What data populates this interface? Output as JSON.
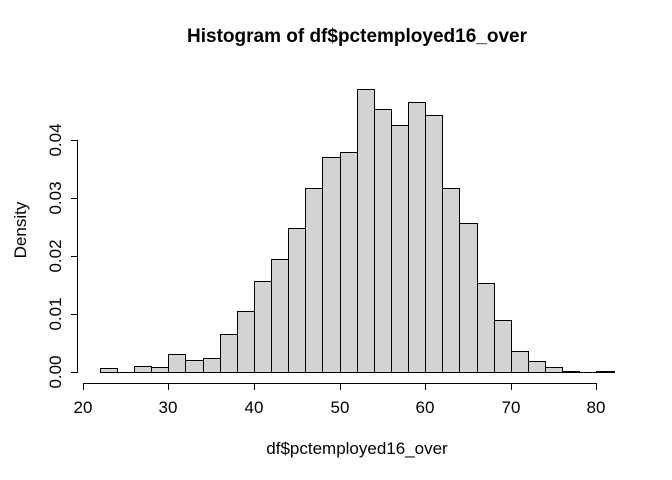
{
  "figure": {
    "background": "#ffffff"
  },
  "chart_data": {
    "type": "bar",
    "subtype": "histogram",
    "title": "Histogram of df$pctemployed16_over",
    "xlabel": "df$pctemployed16_over",
    "ylabel": "Density",
    "grid": false,
    "legend": false,
    "xlim": [
      20,
      82
    ],
    "ylim": [
      0,
      0.049
    ],
    "colors": {
      "bar_fill": "#d3d3d3",
      "bar_border": "#000000",
      "axis": "#000000",
      "text": "#000000"
    },
    "x_axis": {
      "label": "df$pctemployed16_over",
      "ticks": [
        20,
        30,
        40,
        50,
        60,
        70,
        80
      ]
    },
    "y_axis": {
      "label": "Density",
      "ticks": [
        0,
        0.01,
        0.02,
        0.03,
        0.04
      ],
      "tick_labels": [
        "0.00",
        "0.01",
        "0.02",
        "0.03",
        "0.04"
      ]
    },
    "bins": [
      {
        "x0": 22,
        "x1": 24,
        "density": 0.0006
      },
      {
        "x0": 24,
        "x1": 26,
        "density": 0.0
      },
      {
        "x0": 26,
        "x1": 28,
        "density": 0.001
      },
      {
        "x0": 28,
        "x1": 30,
        "density": 0.0008
      },
      {
        "x0": 30,
        "x1": 32,
        "density": 0.003
      },
      {
        "x0": 32,
        "x1": 34,
        "density": 0.002
      },
      {
        "x0": 34,
        "x1": 36,
        "density": 0.0024
      },
      {
        "x0": 36,
        "x1": 38,
        "density": 0.0065
      },
      {
        "x0": 38,
        "x1": 40,
        "density": 0.0105
      },
      {
        "x0": 40,
        "x1": 42,
        "density": 0.0157
      },
      {
        "x0": 42,
        "x1": 44,
        "density": 0.0194
      },
      {
        "x0": 44,
        "x1": 46,
        "density": 0.0248
      },
      {
        "x0": 46,
        "x1": 48,
        "density": 0.0318
      },
      {
        "x0": 48,
        "x1": 50,
        "density": 0.037
      },
      {
        "x0": 50,
        "x1": 52,
        "density": 0.0379
      },
      {
        "x0": 52,
        "x1": 54,
        "density": 0.0488
      },
      {
        "x0": 54,
        "x1": 56,
        "density": 0.0453
      },
      {
        "x0": 56,
        "x1": 58,
        "density": 0.0426
      },
      {
        "x0": 58,
        "x1": 60,
        "density": 0.0466
      },
      {
        "x0": 60,
        "x1": 62,
        "density": 0.0443
      },
      {
        "x0": 62,
        "x1": 64,
        "density": 0.0318
      },
      {
        "x0": 64,
        "x1": 66,
        "density": 0.0257
      },
      {
        "x0": 66,
        "x1": 68,
        "density": 0.0154
      },
      {
        "x0": 68,
        "x1": 70,
        "density": 0.009
      },
      {
        "x0": 70,
        "x1": 72,
        "density": 0.0035
      },
      {
        "x0": 72,
        "x1": 74,
        "density": 0.0018
      },
      {
        "x0": 74,
        "x1": 76,
        "density": 0.0008
      },
      {
        "x0": 76,
        "x1": 78,
        "density": 0.0002
      },
      {
        "x0": 78,
        "x1": 80,
        "density": 0.0
      },
      {
        "x0": 80,
        "x1": 82,
        "density": 0.0002
      }
    ]
  }
}
